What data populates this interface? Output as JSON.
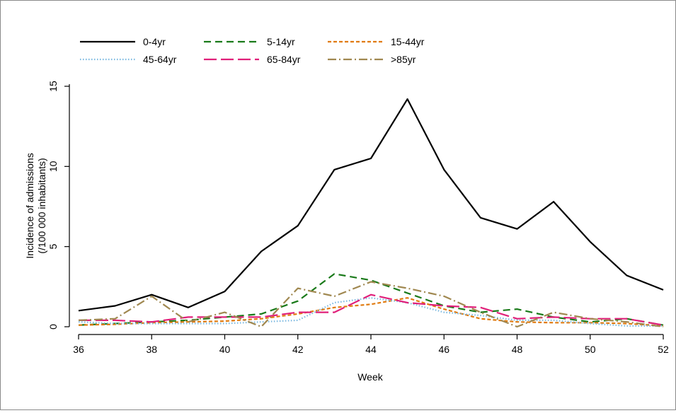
{
  "chart_data": {
    "type": "line",
    "xlabel": "Week",
    "ylabel": "Incidence of admissions",
    "ylabel_line2": "(/100 000 inhabitants)",
    "xlim": [
      36,
      52
    ],
    "ylim": [
      0,
      15
    ],
    "xticks": [
      "36",
      "38",
      "40",
      "42",
      "44",
      "46",
      "48",
      "50",
      "52"
    ],
    "yticks": [
      "0",
      "5",
      "10",
      "15"
    ],
    "grid": false,
    "legend_position": "top-left",
    "x": [
      36,
      37,
      38,
      39,
      40,
      41,
      42,
      43,
      44,
      45,
      46,
      47,
      48,
      49,
      50,
      51,
      52
    ],
    "series": [
      {
        "name": "0-4yr",
        "color": "#000000",
        "dash": "solid",
        "values": [
          1.0,
          1.3,
          2.0,
          1.2,
          2.2,
          4.7,
          6.3,
          9.8,
          10.5,
          14.2,
          9.8,
          6.8,
          6.1,
          7.8,
          5.3,
          3.2,
          2.3
        ]
      },
      {
        "name": "5-14yr",
        "color": "#1a7a1a",
        "dash": "dashed",
        "values": [
          0.1,
          0.2,
          0.3,
          0.4,
          0.6,
          0.8,
          1.6,
          3.3,
          2.9,
          2.1,
          1.3,
          0.9,
          1.1,
          0.6,
          0.3,
          0.5,
          0.1
        ]
      },
      {
        "name": "15-44yr",
        "color": "#e07b10",
        "dash": "short-dashed",
        "values": [
          0.1,
          0.15,
          0.25,
          0.3,
          0.35,
          0.5,
          0.8,
          1.2,
          1.4,
          1.8,
          1.1,
          0.5,
          0.3,
          0.25,
          0.25,
          0.2,
          0.05
        ]
      },
      {
        "name": "45-64yr",
        "color": "#7ab8e0",
        "dash": "dotted",
        "values": [
          0.3,
          0.2,
          0.2,
          0.2,
          0.2,
          0.3,
          0.4,
          1.5,
          1.8,
          1.5,
          0.9,
          0.7,
          0.4,
          0.4,
          0.2,
          0.05,
          0.05
        ]
      },
      {
        "name": "65-84yr",
        "color": "#e0207a",
        "dash": "long-dashed",
        "values": [
          0.4,
          0.4,
          0.3,
          0.6,
          0.6,
          0.6,
          0.9,
          0.9,
          2.0,
          1.5,
          1.3,
          1.2,
          0.5,
          0.6,
          0.5,
          0.5,
          0.1
        ]
      },
      {
        "name": ">85yr",
        "color": "#a08850",
        "dash": "dash-dot",
        "values": [
          0.4,
          0.5,
          1.9,
          0.3,
          0.9,
          0.0,
          2.4,
          1.9,
          2.8,
          2.4,
          1.9,
          0.9,
          0.0,
          0.9,
          0.5,
          0.3,
          0.0
        ]
      }
    ]
  }
}
